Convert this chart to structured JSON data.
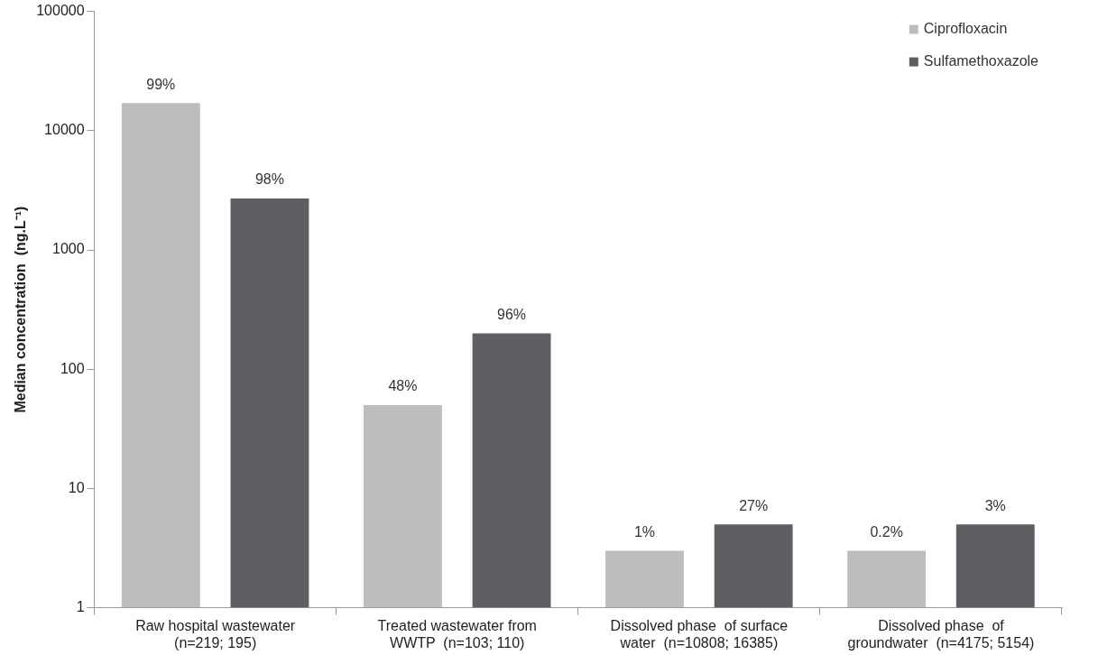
{
  "chart_data": {
    "type": "bar",
    "ylabel": "Median concentration  (ng.L⁻¹)",
    "categories": [
      "Raw hospital wastewater (n=219; 195)",
      "Treated wastewater from WWTP  (n=103; 110)",
      "Dissolved phase  of surface water  (n=10808; 16385)",
      "Dissolved phase  of groundwater  (n=4175; 5154)"
    ],
    "series": [
      {
        "name": "Ciprofloxacin",
        "color": "#bdbdbd",
        "values": [
          17000,
          50,
          3,
          3
        ]
      },
      {
        "name": "Sulfamethoxazole",
        "color": "#5f5f63",
        "values": [
          2700,
          200,
          5,
          5
        ]
      }
    ],
    "annotations": [
      "99%",
      "98%",
      "48%",
      "96%",
      "1%",
      "27%",
      "0.2%",
      "3%"
    ],
    "log": "y",
    "ylim": [
      1,
      100000
    ],
    "yticks": [
      1,
      10,
      100,
      1000,
      10000,
      100000
    ],
    "grid": false,
    "legend": "top right"
  }
}
